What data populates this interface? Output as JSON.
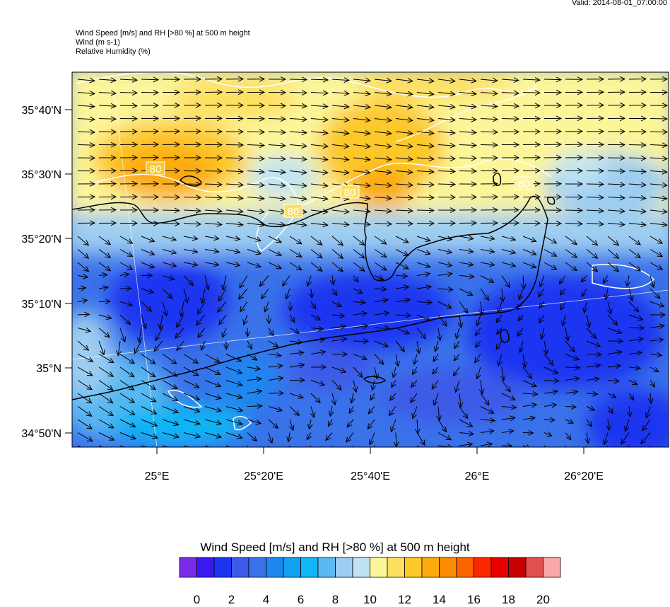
{
  "header": {
    "valid": "Valid: 2014-08-01_07:00:00",
    "title_lines": [
      "Wind Speed [m/s] and RH [>80 %] at 500 m height",
      "Wind   (m s-1)",
      "Relative Humidity   (%)"
    ]
  },
  "map": {
    "lat_labels": [
      "35°40'N",
      "35°30'N",
      "35°20'N",
      "35°10'N",
      "35°N",
      "34°50'N"
    ],
    "lon_labels": [
      "25°E",
      "25°20'E",
      "25°40'E",
      "26°E",
      "26°20'E"
    ],
    "contour_label": "80"
  },
  "colorbar": {
    "title": "Wind Speed [m/s] and RH [>80 %] at 500 m height",
    "colors": [
      "#7b2ae8",
      "#3a18f0",
      "#1e35f0",
      "#3c5ae8",
      "#3a72ea",
      "#1e88f0",
      "#12a0f4",
      "#10b6f6",
      "#5cb8f0",
      "#9dcdf0",
      "#c0e3f4",
      "#fdf59a",
      "#fce060",
      "#fcc82a",
      "#fcaa0e",
      "#fc8c02",
      "#fc6402",
      "#fc2802",
      "#e80000",
      "#c80000",
      "#e05050",
      "#f8a8a8"
    ],
    "labels": [
      "0",
      "2",
      "4",
      "6",
      "8",
      "10",
      "12",
      "14",
      "16",
      "18",
      "20"
    ]
  }
}
